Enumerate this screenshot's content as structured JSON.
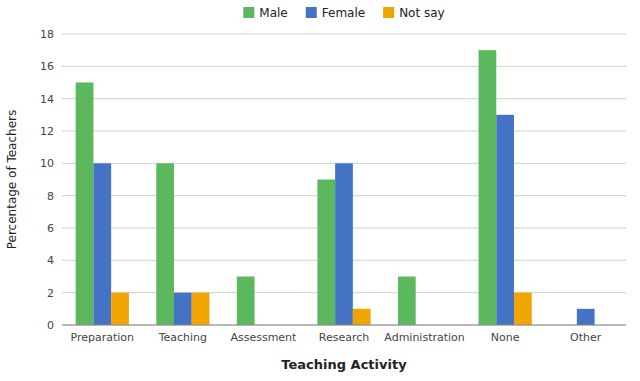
{
  "chart_data": {
    "type": "bar",
    "xlabel": "Teaching Activity",
    "ylabel": "Percentage of Teachers",
    "categories": [
      "Preparation",
      "Teaching",
      "Assessment",
      "Research",
      "Administration",
      "None",
      "Other"
    ],
    "series": [
      {
        "name": "Male",
        "color": "#5cb85c",
        "values": [
          15,
          10,
          3,
          9,
          3,
          17,
          0
        ]
      },
      {
        "name": "Female",
        "color": "#4472c4",
        "values": [
          10,
          2,
          0,
          10,
          0,
          13,
          1
        ]
      },
      {
        "name": "Not say",
        "color": "#f0a500",
        "values": [
          2,
          2,
          0,
          1,
          0,
          2,
          0
        ]
      }
    ],
    "ylim": [
      0,
      18
    ],
    "yticks": [
      0,
      2,
      4,
      6,
      8,
      10,
      12,
      14,
      16,
      18
    ],
    "grid": true,
    "legend": "top"
  }
}
